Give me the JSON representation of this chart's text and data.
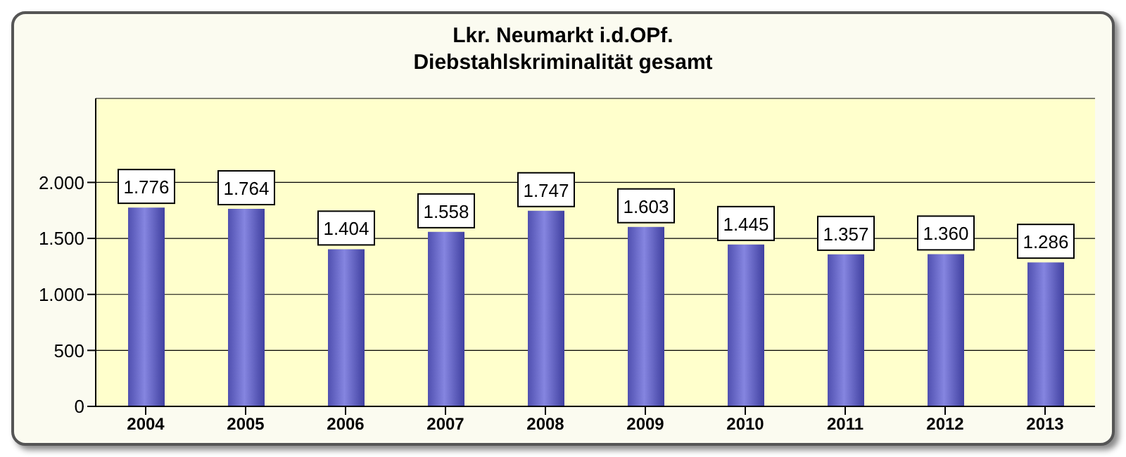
{
  "chart_data": {
    "type": "bar",
    "title": "Lkr. Neumarkt i.d.OPf.",
    "subtitle": "Diebstahlskriminalität gesamt",
    "categories": [
      "2004",
      "2005",
      "2006",
      "2007",
      "2008",
      "2009",
      "2010",
      "2011",
      "2012",
      "2013"
    ],
    "values": [
      1776,
      1764,
      1404,
      1558,
      1747,
      1603,
      1445,
      1357,
      1360,
      1286
    ],
    "value_labels": [
      "1.776",
      "1.764",
      "1.404",
      "1.558",
      "1.747",
      "1.603",
      "1.445",
      "1.357",
      "1.360",
      "1.286"
    ],
    "color": "#8585e0",
    "ylim": [
      0,
      2750
    ],
    "yticks": [
      {
        "value": 0,
        "label": "0"
      },
      {
        "value": 500,
        "label": "500"
      },
      {
        "value": 1000,
        "label": "1.000"
      },
      {
        "value": 1500,
        "label": "1.500"
      },
      {
        "value": 2000,
        "label": "2.000"
      }
    ],
    "grid": "y"
  }
}
